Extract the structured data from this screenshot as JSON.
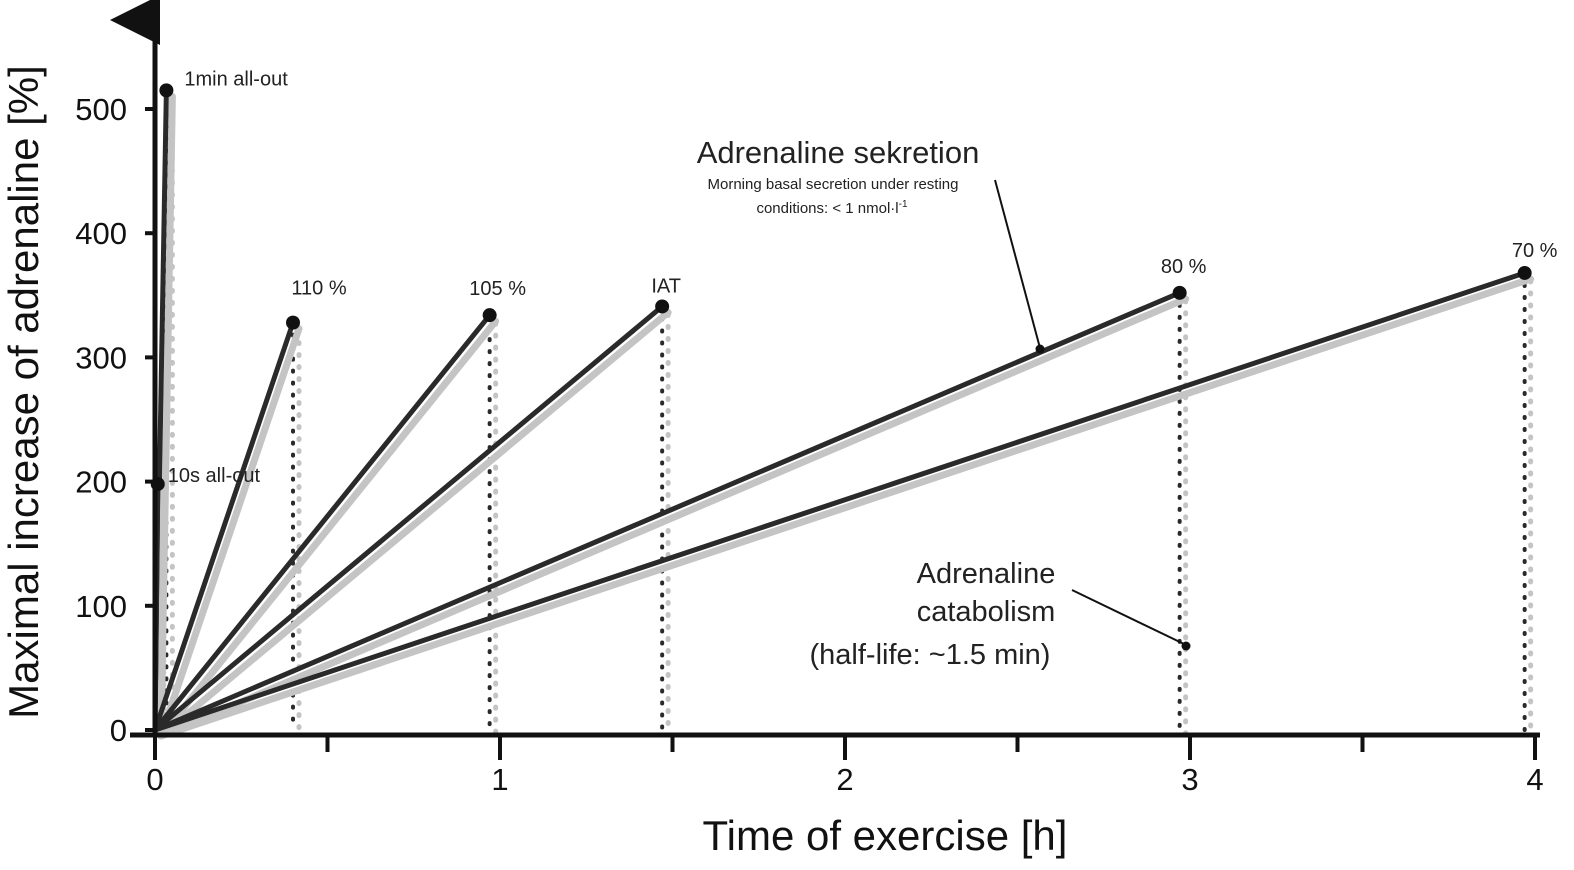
{
  "chart_data": {
    "type": "line",
    "title": "",
    "xlabel": "Time of exercise [h]",
    "ylabel": "Maximal increase of adrenaline [%]",
    "xlim": [
      0,
      4
    ],
    "ylim": [
      0,
      500
    ],
    "x_ticks": [
      "0",
      "1",
      "2",
      "3",
      "4"
    ],
    "y_ticks": [
      "0",
      "100",
      "200",
      "300",
      "400",
      "500"
    ],
    "grid": false,
    "legend": "none",
    "series": [
      {
        "label": "1min all-out",
        "end_x": 0.033,
        "end_y": 515
      },
      {
        "label": "10s all-out",
        "end_x": 0.008,
        "end_y": 198
      },
      {
        "label": "110 %",
        "end_x": 0.4,
        "end_y": 328
      },
      {
        "label": "105 %",
        "end_x": 0.97,
        "end_y": 334
      },
      {
        "label": "IAT",
        "end_x": 1.47,
        "end_y": 341
      },
      {
        "label": "80 %",
        "end_x": 2.97,
        "end_y": 352
      },
      {
        "label": "70 %",
        "end_x": 3.97,
        "end_y": 368
      }
    ],
    "annotations": {
      "secretion_title": "Adrenaline sekretion",
      "secretion_sub_line1": "Morning basal secretion under resting",
      "secretion_sub_line2": "conditions: < 1 nmol·l",
      "secretion_sub_sup": "-1",
      "catabolism_line1": "Adrenaline",
      "catabolism_line2": "catabolism",
      "catabolism_line3": "(half-life: ~1.5 min)"
    },
    "colors": {
      "line": "#2a2a2a",
      "axis": "#111111",
      "shadow": "#c4c4c4"
    }
  }
}
